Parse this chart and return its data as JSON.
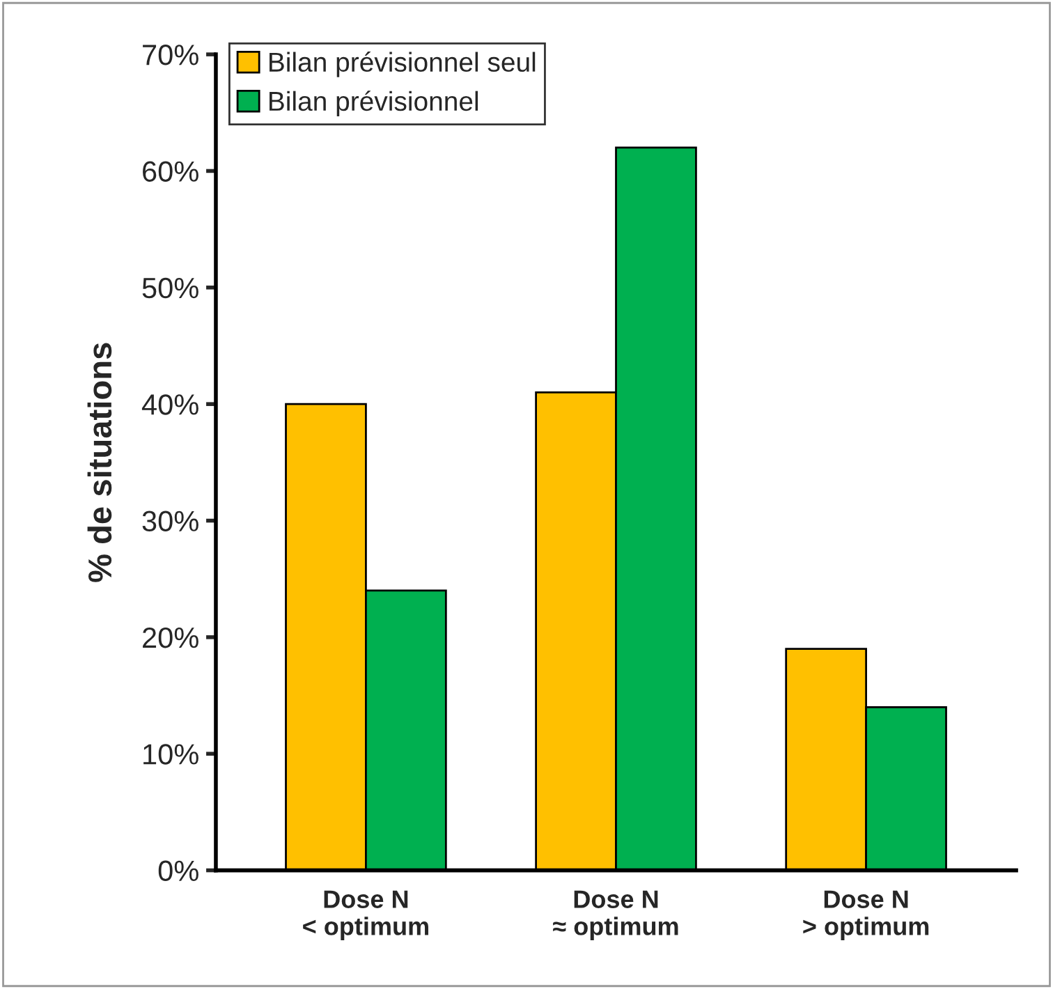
{
  "chart_data": {
    "type": "bar",
    "ylabel": "% de situations",
    "categories": [
      "Dose N\n< optimum",
      "Dose N\n≈ optimum",
      "Dose N\n> optimum"
    ],
    "series": [
      {
        "name": "Bilan prévisionnel seul",
        "color": "#ffc000",
        "values": [
          40,
          41,
          19
        ]
      },
      {
        "name": "Bilan prévisionnel",
        "color": "#00b050",
        "values": [
          24,
          62,
          14
        ]
      }
    ],
    "ylim": [
      0,
      70
    ],
    "yticks": [
      {
        "value": 0,
        "label": "0%"
      },
      {
        "value": 10,
        "label": "10%"
      },
      {
        "value": 20,
        "label": "20%"
      },
      {
        "value": 30,
        "label": "30%"
      },
      {
        "value": 40,
        "label": "40%"
      },
      {
        "value": 50,
        "label": "50%"
      },
      {
        "value": 60,
        "label": "60%"
      },
      {
        "value": 70,
        "label": "70%"
      }
    ],
    "grid": false,
    "legend": "top left"
  }
}
